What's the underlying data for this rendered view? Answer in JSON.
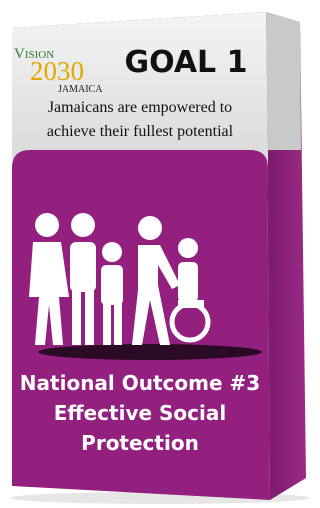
{
  "logo": {
    "vision": "Vision",
    "year": "2030",
    "country": "JAMAICA"
  },
  "goal": "GOAL 1",
  "tagline": [
    "Jamaicans are empowered to",
    "achieve their fullest potential"
  ],
  "outcome": [
    "National Outcome #3",
    "Effective Social",
    "Protection"
  ]
}
